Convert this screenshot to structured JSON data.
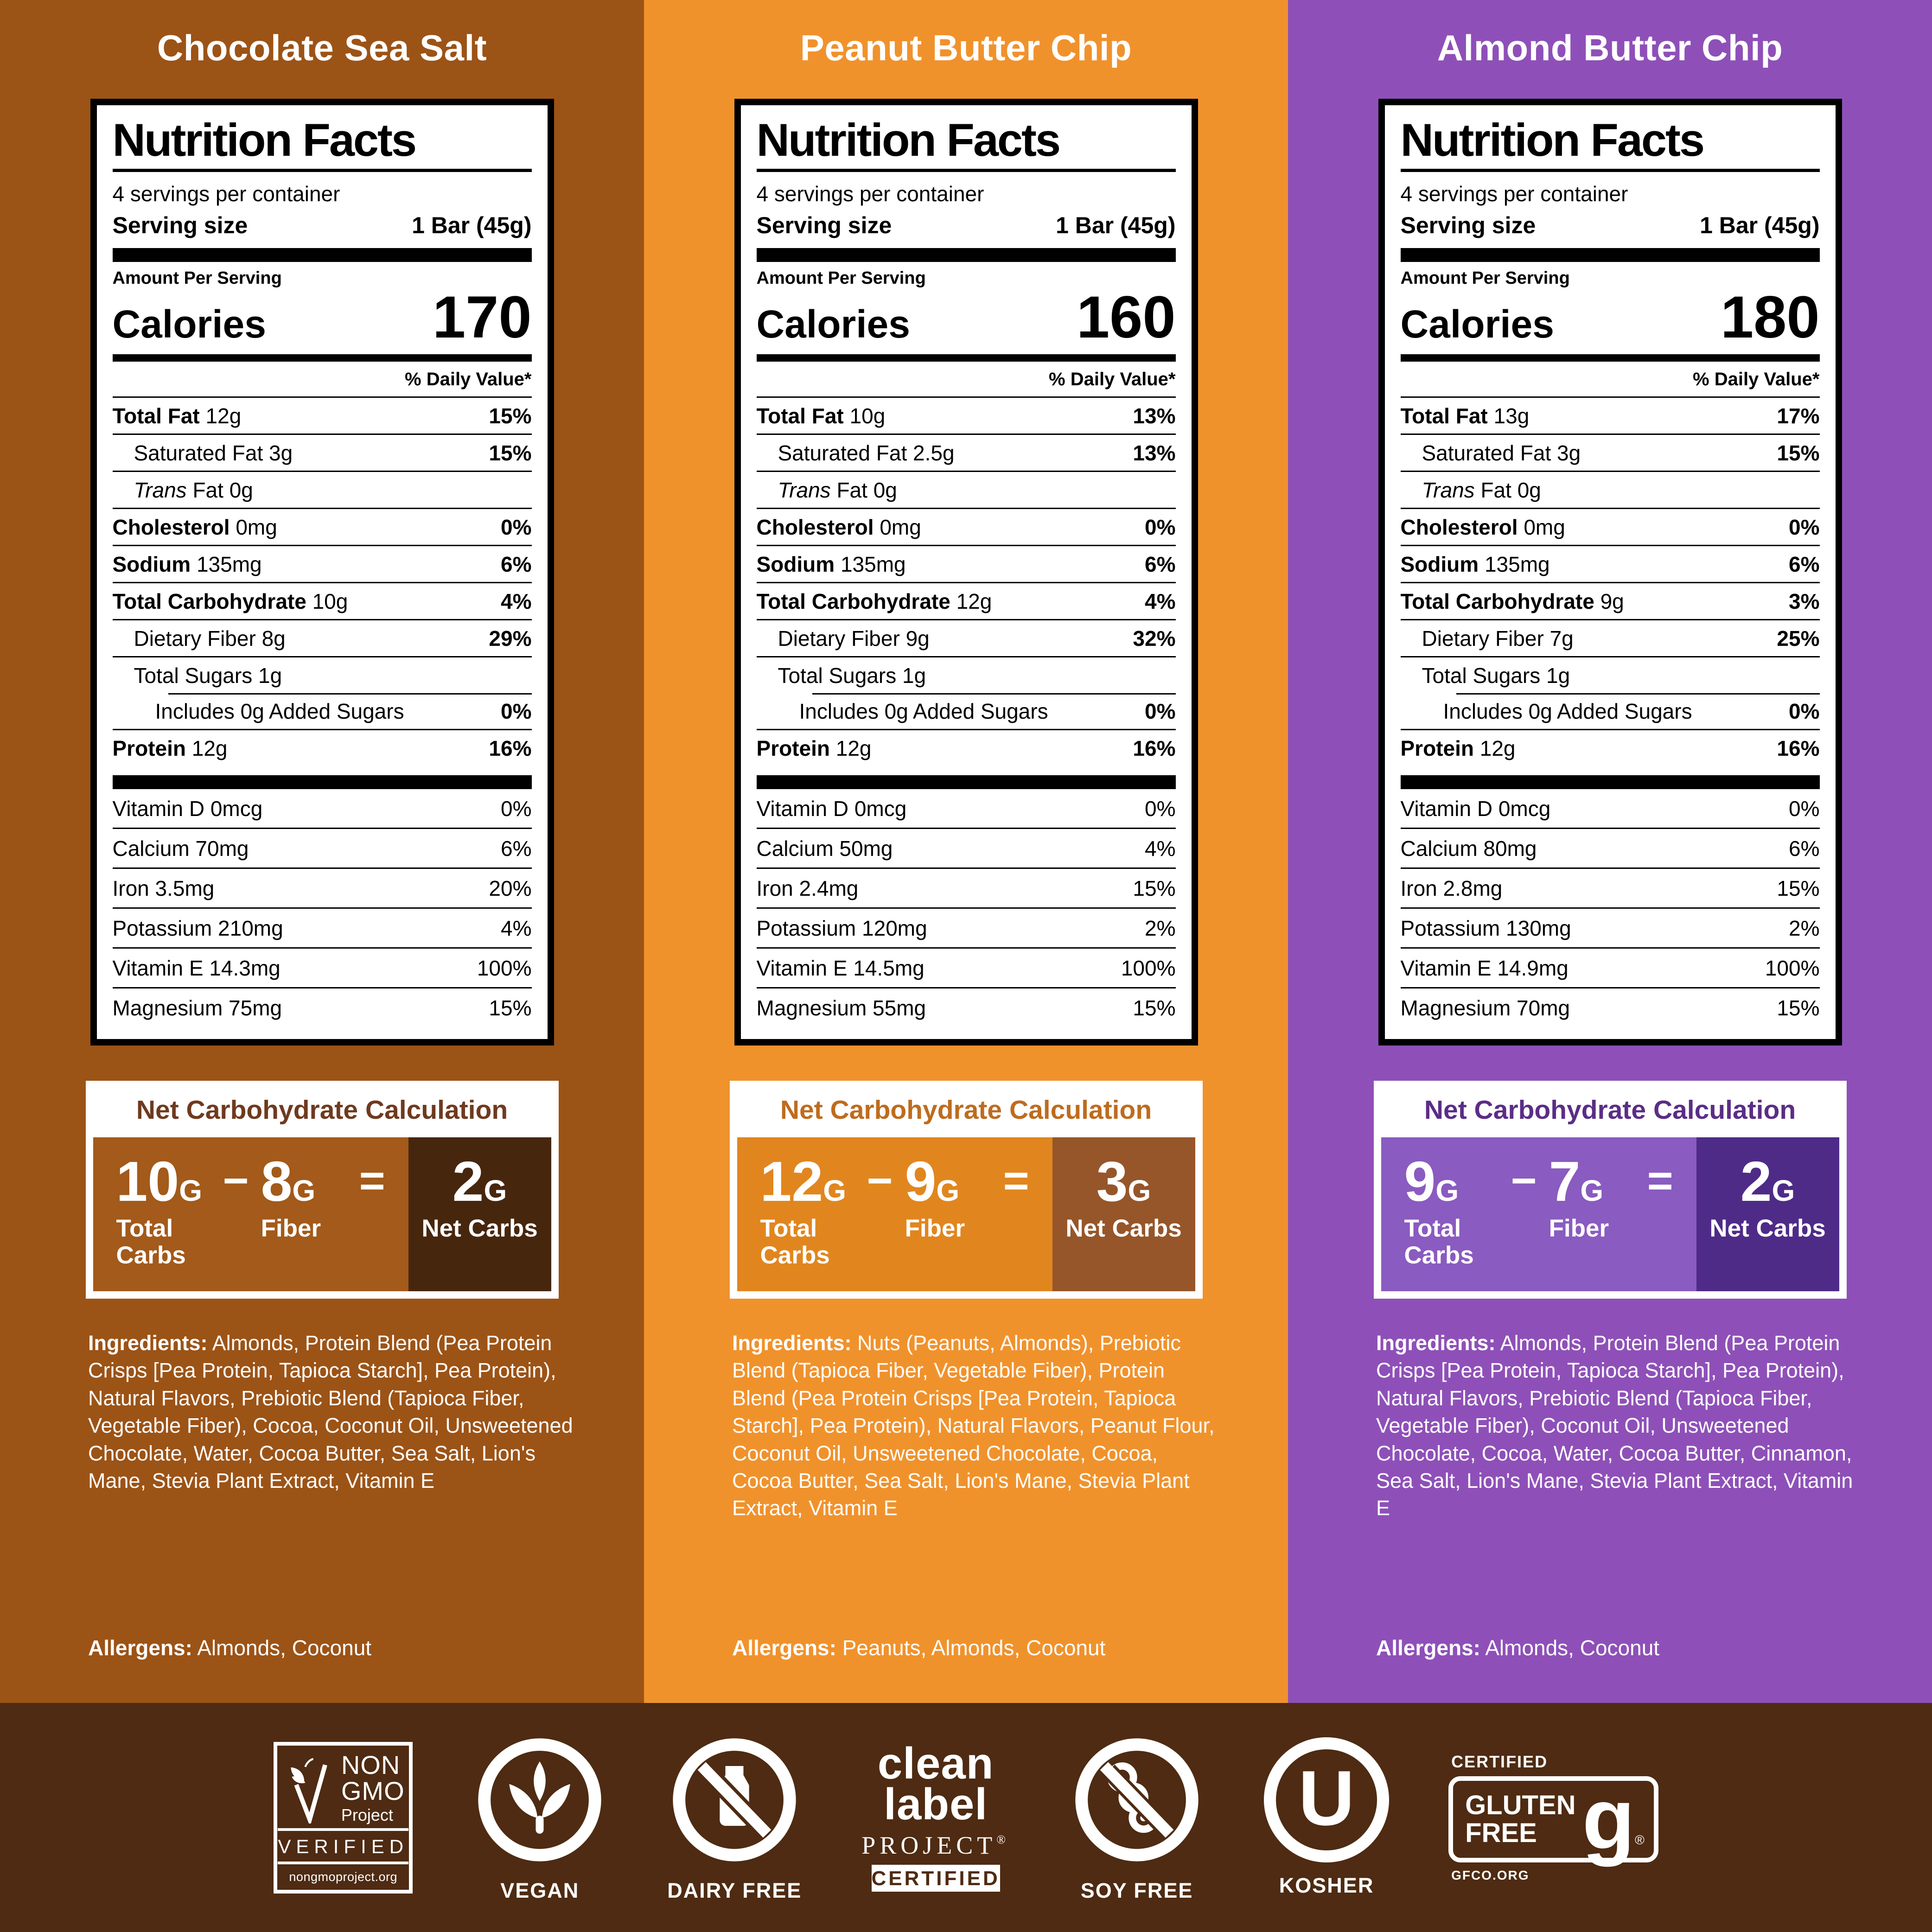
{
  "shared": {
    "panel": {
      "title": "Nutrition Facts",
      "servings_per_container": "4 servings per container",
      "serving_size_label": "Serving size",
      "serving_size_value": "1 Bar (45g)",
      "amount_per_serving": "Amount Per Serving",
      "calories_label": "Calories",
      "daily_value_header": "% Daily Value*"
    },
    "net_carb": {
      "header": "Net Carbohydrate Calculation",
      "unit": "G",
      "minus": "−",
      "equals": "=",
      "total_label": "Total Carbs",
      "fiber_label": "Fiber",
      "net_label": "Net Carbs"
    },
    "ingredients_label": "Ingredients:",
    "allergens_label": "Allergens:"
  },
  "colors": {
    "footer_background": "#4E2B12"
  },
  "flavors": [
    {
      "name": "Chocolate Sea Salt",
      "colors": {
        "background": "#9C5316",
        "net_box": "#A35A1A",
        "net_block": "#47260E",
        "net_header_text": "#6F3A1E"
      },
      "calories": "170",
      "nutrients": [
        {
          "name": "Total Fat",
          "amount": "12g",
          "dv": "15%",
          "bold": true
        },
        {
          "name": "Saturated Fat",
          "amount": "3g",
          "dv": "15%",
          "indent": 1
        },
        {
          "italic": "Trans",
          "name": " Fat",
          "amount": "0g",
          "dv": "",
          "indent": 1
        },
        {
          "name": "Cholesterol",
          "amount": "0mg",
          "dv": "0%",
          "bold": true
        },
        {
          "name": "Sodium",
          "amount": "135mg",
          "dv": "6%",
          "bold": true
        },
        {
          "name": "Total Carbohydrate",
          "amount": "10g",
          "dv": "4%",
          "bold": true
        },
        {
          "name": "Dietary Fiber",
          "amount": "8g",
          "dv": "29%",
          "indent": 1
        },
        {
          "name": "Total Sugars",
          "amount": "1g",
          "dv": "",
          "indent": 1
        },
        {
          "name": "Includes 0g Added Sugars",
          "amount": "",
          "dv": "0%",
          "indent": 2
        },
        {
          "name": "Protein",
          "amount": "12g",
          "dv": "16%",
          "bold": true
        }
      ],
      "vitamins": [
        {
          "name": "Vitamin D",
          "amount": "0mcg",
          "dv": "0%"
        },
        {
          "name": "Calcium",
          "amount": "70mg",
          "dv": "6%"
        },
        {
          "name": "Iron",
          "amount": "3.5mg",
          "dv": "20%"
        },
        {
          "name": "Potassium",
          "amount": "210mg",
          "dv": "4%"
        },
        {
          "name": "Vitamin E",
          "amount": "14.3mg",
          "dv": "100%"
        },
        {
          "name": "Magnesium",
          "amount": "75mg",
          "dv": "15%"
        }
      ],
      "net_carbs": {
        "total": "10",
        "fiber": "8",
        "net": "2"
      },
      "ingredients": "Almonds, Protein Blend (Pea Protein Crisps [Pea Protein, Tapioca Starch], Pea Protein), Natural Flavors, Prebiotic Blend (Tapioca Fiber, Vegetable Fiber), Cocoa, Coconut Oil, Unsweetened Chocolate, Water, Cocoa Butter, Sea Salt, Lion's Mane, Stevia Plant Extract, Vitamin E",
      "allergens": "Almonds, Coconut"
    },
    {
      "name": "Peanut Butter Chip",
      "colors": {
        "background": "#F0922C",
        "net_box": "#E1861F",
        "net_block": "#96562A",
        "net_header_text": "#BE6C1E"
      },
      "calories": "160",
      "nutrients": [
        {
          "name": "Total Fat",
          "amount": "10g",
          "dv": "13%",
          "bold": true
        },
        {
          "name": "Saturated Fat",
          "amount": "2.5g",
          "dv": "13%",
          "indent": 1
        },
        {
          "italic": "Trans",
          "name": " Fat",
          "amount": "0g",
          "dv": "",
          "indent": 1
        },
        {
          "name": "Cholesterol",
          "amount": "0mg",
          "dv": "0%",
          "bold": true
        },
        {
          "name": "Sodium",
          "amount": "135mg",
          "dv": "6%",
          "bold": true
        },
        {
          "name": "Total Carbohydrate",
          "amount": "12g",
          "dv": "4%",
          "bold": true
        },
        {
          "name": "Dietary Fiber",
          "amount": "9g",
          "dv": "32%",
          "indent": 1
        },
        {
          "name": "Total Sugars",
          "amount": "1g",
          "dv": "",
          "indent": 1
        },
        {
          "name": "Includes 0g Added Sugars",
          "amount": "",
          "dv": "0%",
          "indent": 2
        },
        {
          "name": "Protein",
          "amount": "12g",
          "dv": "16%",
          "bold": true
        }
      ],
      "vitamins": [
        {
          "name": "Vitamin D",
          "amount": "0mcg",
          "dv": "0%"
        },
        {
          "name": "Calcium",
          "amount": "50mg",
          "dv": "4%"
        },
        {
          "name": "Iron",
          "amount": "2.4mg",
          "dv": "15%"
        },
        {
          "name": "Potassium",
          "amount": "120mg",
          "dv": "2%"
        },
        {
          "name": "Vitamin E",
          "amount": "14.5mg",
          "dv": "100%"
        },
        {
          "name": "Magnesium",
          "amount": "55mg",
          "dv": "15%"
        }
      ],
      "net_carbs": {
        "total": "12",
        "fiber": "9",
        "net": "3"
      },
      "ingredients": "Nuts (Peanuts, Almonds), Prebiotic Blend (Tapioca Fiber, Vegetable Fiber), Protein Blend (Pea Protein Crisps [Pea Protein, Tapioca Starch], Pea Protein), Natural Flavors, Peanut Flour, Coconut Oil, Unsweetened Chocolate, Cocoa, Cocoa Butter, Sea Salt, Lion's Mane, Stevia Plant Extract, Vitamin E",
      "allergens": "Peanuts, Almonds, Coconut"
    },
    {
      "name": "Almond Butter Chip",
      "colors": {
        "background": "#8E50B8",
        "net_box": "#8A5BC0",
        "net_block": "#4E2B87",
        "net_header_text": "#5B2D87"
      },
      "calories": "180",
      "nutrients": [
        {
          "name": "Total Fat",
          "amount": "13g",
          "dv": "17%",
          "bold": true
        },
        {
          "name": "Saturated Fat",
          "amount": "3g",
          "dv": "15%",
          "indent": 1
        },
        {
          "italic": "Trans",
          "name": " Fat",
          "amount": "0g",
          "dv": "",
          "indent": 1
        },
        {
          "name": "Cholesterol",
          "amount": "0mg",
          "dv": "0%",
          "bold": true
        },
        {
          "name": "Sodium",
          "amount": "135mg",
          "dv": "6%",
          "bold": true
        },
        {
          "name": "Total Carbohydrate",
          "amount": "9g",
          "dv": "3%",
          "bold": true
        },
        {
          "name": "Dietary Fiber",
          "amount": "7g",
          "dv": "25%",
          "indent": 1
        },
        {
          "name": "Total Sugars",
          "amount": "1g",
          "dv": "",
          "indent": 1
        },
        {
          "name": "Includes 0g Added Sugars",
          "amount": "",
          "dv": "0%",
          "indent": 2
        },
        {
          "name": "Protein",
          "amount": "12g",
          "dv": "16%",
          "bold": true
        }
      ],
      "vitamins": [
        {
          "name": "Vitamin D",
          "amount": "0mcg",
          "dv": "0%"
        },
        {
          "name": "Calcium",
          "amount": "80mg",
          "dv": "6%"
        },
        {
          "name": "Iron",
          "amount": "2.8mg",
          "dv": "15%"
        },
        {
          "name": "Potassium",
          "amount": "130mg",
          "dv": "2%"
        },
        {
          "name": "Vitamin E",
          "amount": "14.9mg",
          "dv": "100%"
        },
        {
          "name": "Magnesium",
          "amount": "70mg",
          "dv": "15%"
        }
      ],
      "net_carbs": {
        "total": "9",
        "fiber": "7",
        "net": "2"
      },
      "ingredients": "Almonds, Protein Blend (Pea Protein Crisps [Pea Protein, Tapioca Starch], Pea Protein), Natural Flavors, Prebiotic Blend (Tapioca Fiber, Vegetable Fiber), Coconut Oil, Unsweetened Chocolate, Cocoa, Water, Cocoa Butter, Cinnamon, Sea Salt, Lion's Mane, Stevia Plant Extract, Vitamin E",
      "allergens": "Almonds, Coconut"
    }
  ],
  "footer": {
    "non_gmo": {
      "line1": "NON",
      "line2": "GMO",
      "line3": "Project",
      "verified": "VERIFIED",
      "url": "nongmoproject.org"
    },
    "vegan": {
      "label": "VEGAN"
    },
    "dairy_free": {
      "label": "DAIRY FREE"
    },
    "clean_label": {
      "word1": "clean",
      "word2": "label",
      "word3": "PROJECT",
      "reg": "®",
      "certified": "CERTIFIED"
    },
    "soy_free": {
      "label": "SOY FREE"
    },
    "kosher": {
      "label": "KOSHER",
      "symbol": "U"
    },
    "gluten_free": {
      "certified": "CERTIFIED",
      "word1": "GLUTEN",
      "word2": "FREE",
      "g": "g",
      "reg": "®",
      "url": "GFCO.ORG"
    }
  }
}
